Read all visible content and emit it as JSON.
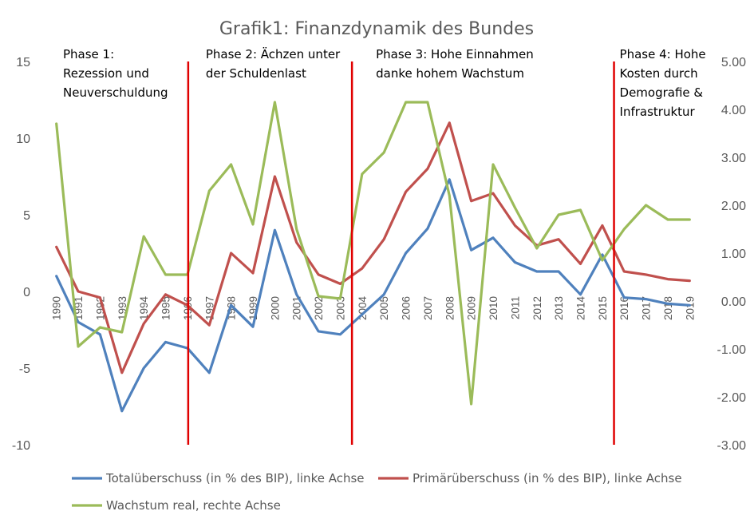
{
  "chart_data": {
    "type": "line",
    "title": "Grafik1: Finanzdynamik des Bundes",
    "categories": [
      "1990",
      "1991",
      "1992",
      "1993",
      "1994",
      "1995",
      "1996",
      "1997",
      "1998",
      "1999",
      "2000",
      "2001",
      "2002",
      "2003",
      "2004",
      "2005",
      "2006",
      "2007",
      "2008",
      "2009",
      "2010",
      "2011",
      "2012",
      "2013",
      "2014",
      "2015",
      "2016",
      "2017",
      "2018",
      "2019"
    ],
    "left_axis": {
      "ylim": [
        -10,
        15
      ],
      "ticks": [
        "-10",
        "-5",
        "0",
        "5",
        "10",
        "15"
      ]
    },
    "right_axis": {
      "ylim": [
        -3,
        5
      ],
      "ticks": [
        "-3.00",
        "-2.00",
        "-1.00",
        "0.00",
        "1.00",
        "2.00",
        "3.00",
        "4.00",
        "5.00"
      ]
    },
    "grid": false,
    "legend_position": "bottom",
    "series": [
      {
        "name": "Totalüberschuss (in % des BIP), linke Achse",
        "axis": "left",
        "color": "#4F81BD",
        "values": [
          1.0,
          -2.0,
          -2.8,
          -7.8,
          -5.0,
          -3.3,
          -3.7,
          -5.3,
          -0.9,
          -2.3,
          4.0,
          -0.2,
          -2.6,
          -2.8,
          -1.5,
          -0.2,
          2.5,
          4.1,
          7.3,
          2.7,
          3.5,
          1.9,
          1.3,
          1.3,
          -0.2,
          2.4,
          -0.4,
          -0.5,
          -0.8,
          -0.9
        ]
      },
      {
        "name": "Primärüberschuss (in % des BIP), linke Achse",
        "axis": "left",
        "color": "#C0504D",
        "values": [
          2.9,
          0.0,
          -0.4,
          -5.3,
          -2.1,
          -0.2,
          -0.9,
          -2.2,
          2.5,
          1.2,
          7.5,
          3.2,
          1.1,
          0.5,
          1.5,
          3.4,
          6.5,
          8.0,
          11.0,
          5.9,
          6.4,
          4.3,
          3.0,
          3.4,
          1.8,
          4.3,
          1.3,
          1.1,
          0.8,
          0.7
        ]
      },
      {
        "name": "Wachstum real, rechte Achse",
        "axis": "right",
        "color": "#9BBB59",
        "values": [
          3.7,
          -0.95,
          -0.55,
          -0.65,
          1.35,
          0.55,
          0.55,
          2.3,
          2.85,
          1.6,
          4.15,
          1.5,
          0.1,
          0.05,
          2.65,
          3.1,
          4.15,
          4.15,
          2.2,
          -2.15,
          2.85,
          1.95,
          1.1,
          1.8,
          1.9,
          0.85,
          1.5,
          2.0,
          1.7,
          1.7
        ]
      }
    ],
    "phases": [
      {
        "lines": [
          "Phase 1:",
          "Rezession und",
          "Neuverschuldung"
        ]
      },
      {
        "lines": [
          "Phase 2: Ächzen unter",
          "der Schuldenlast"
        ]
      },
      {
        "lines": [
          "Phase 3: Hohe Einnahmen",
          "danke hohem Wachstum"
        ]
      },
      {
        "lines": [
          "Phase 4: Hohe",
          "Kosten durch",
          "Demografie &",
          "Infrastruktur"
        ]
      }
    ],
    "phase_boundaries": [
      "1996",
      "2003.5",
      "2015.5"
    ]
  }
}
